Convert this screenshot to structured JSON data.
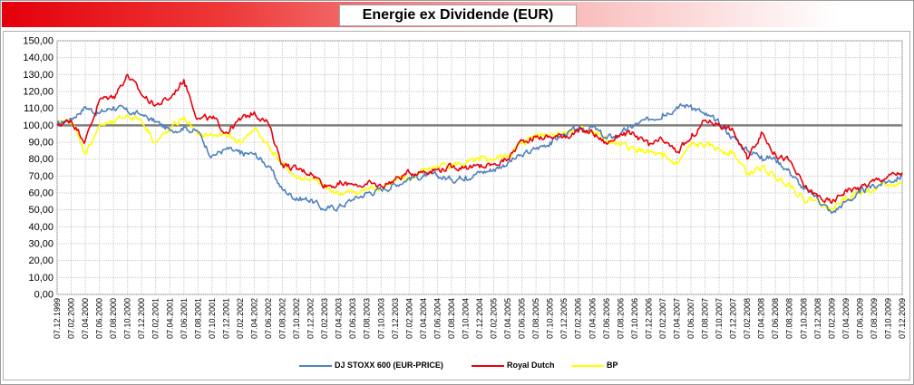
{
  "title": "Energie ex Dividende (EUR)",
  "chart_data": {
    "type": "line",
    "title": "Energie ex Dividende (EUR)",
    "xlabel": "",
    "ylabel": "",
    "ylim": [
      0,
      150
    ],
    "y_ticks": [
      "0,00",
      "10,00",
      "20,00",
      "30,00",
      "40,00",
      "50,00",
      "60,00",
      "70,00",
      "80,00",
      "90,00",
      "100,00",
      "110,00",
      "120,00",
      "130,00",
      "140,00",
      "150,00"
    ],
    "x_ticks": [
      "07.12.1999",
      "07.02.2000",
      "07.04.2000",
      "07.06.2000",
      "07.08.2000",
      "07.10.2000",
      "07.12.2000",
      "07.02.2001",
      "07.04.2001",
      "07.06.2001",
      "07.08.2001",
      "07.10.2001",
      "07.12.2001",
      "07.02.2002",
      "07.04.2002",
      "07.06.2002",
      "07.08.2002",
      "07.10.2002",
      "07.12.2002",
      "07.02.2003",
      "07.04.2003",
      "07.06.2003",
      "07.08.2003",
      "07.10.2003",
      "07.12.2003",
      "07.02.2004",
      "07.04.2004",
      "07.06.2004",
      "07.08.2004",
      "07.10.2004",
      "07.12.2004",
      "07.02.2005",
      "07.04.2005",
      "07.06.2005",
      "07.08.2005",
      "07.10.2005",
      "07.12.2005",
      "07.02.2006",
      "07.04.2006",
      "07.06.2006",
      "07.08.2006",
      "07.10.2006",
      "07.12.2006",
      "07.02.2007",
      "07.04.2007",
      "07.06.2007",
      "07.08.2007",
      "07.10.2007",
      "07.12.2007",
      "07.02.2008",
      "07.04.2008",
      "07.06.2008",
      "07.08.2008",
      "07.10.2008",
      "07.12.2008",
      "07.02.2009",
      "07.04.2009",
      "07.06.2009",
      "07.08.2009",
      "07.10.2009",
      "07.12.2009"
    ],
    "grid": true,
    "reference_line": 100,
    "legend": "bottom",
    "series": [
      {
        "name": "DJ STOXX 600 (EUR-PRICE)",
        "color": "#4f81bd",
        "values": [
          100,
          104,
          111,
          107,
          111,
          108,
          106,
          102,
          97,
          99,
          96,
          82,
          86,
          83,
          83,
          76,
          62,
          57,
          56,
          50,
          52,
          56,
          60,
          62,
          65,
          69,
          70,
          70,
          68,
          70,
          72,
          74,
          78,
          82,
          86,
          90,
          95,
          97,
          99,
          92,
          95,
          100,
          103,
          107,
          111,
          112,
          106,
          101,
          93,
          85,
          82,
          80,
          73,
          62,
          57,
          48,
          55,
          60,
          64,
          67,
          70
        ]
      },
      {
        "name": "Royal Dutch",
        "color": "#e8000b",
        "values": [
          100,
          103,
          91,
          115,
          117,
          130,
          118,
          112,
          116,
          127,
          104,
          104,
          96,
          103,
          108,
          101,
          77,
          74,
          72,
          65,
          65,
          65,
          65,
          64,
          68,
          72,
          73,
          74,
          75,
          76,
          75,
          77,
          80,
          91,
          93,
          93,
          94,
          96,
          96,
          89,
          95,
          94,
          88,
          91,
          84,
          92,
          103,
          101,
          97,
          80,
          96,
          83,
          79,
          64,
          58,
          54,
          62,
          63,
          67,
          70,
          72
        ]
      },
      {
        "name": "BP",
        "color": "#ffff00",
        "values": [
          100,
          103,
          83,
          100,
          101,
          106,
          103,
          90,
          97,
          105,
          94,
          94,
          94,
          90,
          98,
          88,
          77,
          69,
          68,
          63,
          60,
          60,
          62,
          64,
          67,
          68,
          73,
          76,
          77,
          77,
          79,
          80,
          82,
          89,
          95,
          95,
          96,
          97,
          97,
          91,
          88,
          86,
          84,
          81,
          77,
          88,
          88,
          86,
          84,
          71,
          75,
          69,
          66,
          56,
          56,
          50,
          58,
          60,
          62,
          64,
          66
        ]
      }
    ]
  }
}
